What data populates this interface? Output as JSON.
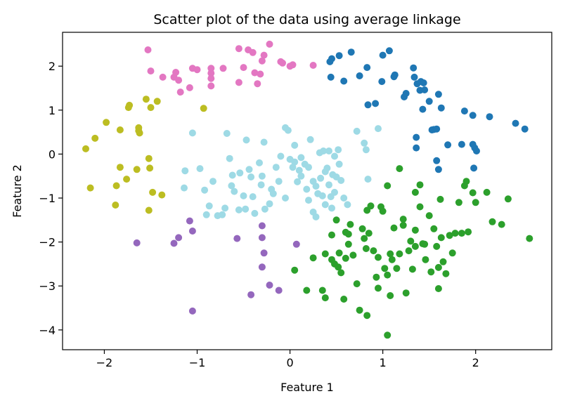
{
  "chart_data": {
    "type": "scatter",
    "title": "Scatter plot of the data using average linkage",
    "xlabel": "Feature 1",
    "ylabel": "Feature 2",
    "xlim": [
      -2.45,
      2.82
    ],
    "ylim": [
      -4.45,
      2.77
    ],
    "x_ticks": [
      -2,
      -1,
      0,
      1,
      2
    ],
    "x_tick_labels": [
      "−2",
      "−1",
      "0",
      "1",
      "2"
    ],
    "y_ticks": [
      -4,
      -3,
      -2,
      -1,
      0,
      1,
      2
    ],
    "y_tick_labels": [
      "−4",
      "−3",
      "−2",
      "−1",
      "0",
      "1",
      "2"
    ],
    "grid": false,
    "legend": "none",
    "colors": {
      "pink": "#e377c2",
      "blue": "#1f77b4",
      "olive": "#bcbd22",
      "cyan": "#9edae5",
      "purple": "#9467bd",
      "green": "#2ca02c"
    },
    "series": [
      {
        "color_key": "pink",
        "points": [
          [
            -1.53,
            2.37
          ],
          [
            -1.5,
            1.89
          ],
          [
            -1.37,
            1.75
          ],
          [
            -1.25,
            1.75
          ],
          [
            -1.23,
            1.86
          ],
          [
            -1.2,
            1.68
          ],
          [
            -1.18,
            1.41
          ],
          [
            -1.08,
            1.51
          ],
          [
            -1.05,
            1.95
          ],
          [
            -1.0,
            1.92
          ],
          [
            -0.85,
            1.95
          ],
          [
            -0.85,
            1.84
          ],
          [
            -0.85,
            1.72
          ],
          [
            -0.85,
            1.55
          ],
          [
            -0.72,
            1.95
          ],
          [
            -0.55,
            2.4
          ],
          [
            -0.55,
            1.63
          ],
          [
            -0.5,
            1.97
          ],
          [
            -0.45,
            2.37
          ],
          [
            -0.4,
            2.31
          ],
          [
            -0.38,
            1.85
          ],
          [
            -0.35,
            1.6
          ],
          [
            -0.32,
            1.82
          ],
          [
            -0.3,
            2.12
          ],
          [
            -0.28,
            2.25
          ],
          [
            -0.22,
            2.5
          ],
          [
            -0.1,
            2.1
          ],
          [
            -0.08,
            2.07
          ],
          [
            0.0,
            2.0
          ],
          [
            0.03,
            2.03
          ],
          [
            0.25,
            2.02
          ]
        ]
      },
      {
        "color_key": "blue",
        "points": [
          [
            0.43,
            2.1
          ],
          [
            0.45,
            2.17
          ],
          [
            0.44,
            1.75
          ],
          [
            0.53,
            2.24
          ],
          [
            0.58,
            1.66
          ],
          [
            0.66,
            2.32
          ],
          [
            0.75,
            1.78
          ],
          [
            0.83,
            1.97
          ],
          [
            0.84,
            1.12
          ],
          [
            0.92,
            1.15
          ],
          [
            0.99,
            1.65
          ],
          [
            1.0,
            2.25
          ],
          [
            1.07,
            2.35
          ],
          [
            1.12,
            1.76
          ],
          [
            1.13,
            1.8
          ],
          [
            1.23,
            1.3
          ],
          [
            1.25,
            1.38
          ],
          [
            1.33,
            1.96
          ],
          [
            1.34,
            1.75
          ],
          [
            1.37,
            1.6
          ],
          [
            1.4,
            1.45
          ],
          [
            1.41,
            1.65
          ],
          [
            1.44,
            1.62
          ],
          [
            1.45,
            1.46
          ],
          [
            1.43,
            1.02
          ],
          [
            1.5,
            1.2
          ],
          [
            1.53,
            0.55
          ],
          [
            1.6,
            1.36
          ],
          [
            1.63,
            1.05
          ],
          [
            1.36,
            0.38
          ],
          [
            1.36,
            0.14
          ],
          [
            1.55,
            0.56
          ],
          [
            1.58,
            0.57
          ],
          [
            1.58,
            -0.15
          ],
          [
            1.6,
            -0.35
          ],
          [
            1.7,
            0.21
          ],
          [
            1.85,
            0.22
          ],
          [
            1.88,
            0.98
          ],
          [
            1.97,
            0.88
          ],
          [
            1.97,
            0.22
          ],
          [
            1.99,
            0.14
          ],
          [
            2.01,
            0.07
          ],
          [
            1.98,
            -0.32
          ],
          [
            2.15,
            0.85
          ],
          [
            2.43,
            0.7
          ],
          [
            2.53,
            0.57
          ]
        ]
      },
      {
        "color_key": "olive",
        "points": [
          [
            -2.2,
            0.12
          ],
          [
            -2.15,
            -0.77
          ],
          [
            -2.1,
            0.36
          ],
          [
            -1.98,
            0.72
          ],
          [
            -1.88,
            -1.16
          ],
          [
            -1.87,
            -0.72
          ],
          [
            -1.83,
            -0.3
          ],
          [
            -1.83,
            0.55
          ],
          [
            -1.76,
            -0.57
          ],
          [
            -1.74,
            1.06
          ],
          [
            -1.73,
            1.11
          ],
          [
            -1.65,
            -0.35
          ],
          [
            -1.63,
            0.6
          ],
          [
            -1.63,
            0.53
          ],
          [
            -1.62,
            0.48
          ],
          [
            -1.55,
            1.25
          ],
          [
            -1.52,
            -0.1
          ],
          [
            -1.51,
            -0.32
          ],
          [
            -1.5,
            1.06
          ],
          [
            -1.48,
            -0.87
          ],
          [
            -1.52,
            -1.28
          ],
          [
            -1.43,
            1.2
          ],
          [
            -1.38,
            -0.93
          ],
          [
            -0.93,
            1.04
          ]
        ]
      },
      {
        "color_key": "cyan",
        "points": [
          [
            -1.05,
            0.48
          ],
          [
            -1.13,
            -0.38
          ],
          [
            -0.97,
            -0.33
          ],
          [
            -1.14,
            -0.77
          ],
          [
            -0.92,
            -0.82
          ],
          [
            -0.87,
            -1.18
          ],
          [
            -0.83,
            -0.62
          ],
          [
            -0.78,
            -1.4
          ],
          [
            -0.73,
            -1.38
          ],
          [
            -0.68,
            0.47
          ],
          [
            -0.7,
            -1.23
          ],
          [
            -0.65,
            -0.1
          ],
          [
            -0.62,
            -0.48
          ],
          [
            -0.63,
            -0.72
          ],
          [
            -0.6,
            -0.85
          ],
          [
            -0.55,
            -1.27
          ],
          [
            -0.54,
            -0.43
          ],
          [
            -0.5,
            -0.95
          ],
          [
            -0.48,
            -1.25
          ],
          [
            -0.47,
            0.32
          ],
          [
            -0.44,
            -0.35
          ],
          [
            -0.42,
            -0.52
          ],
          [
            -0.4,
            -0.97
          ],
          [
            -0.38,
            -1.35
          ],
          [
            -0.33,
            -0.2
          ],
          [
            -0.3,
            -0.5
          ],
          [
            -0.31,
            -0.7
          ],
          [
            -0.28,
            0.27
          ],
          [
            -0.27,
            -1.25
          ],
          [
            -0.22,
            -1.13
          ],
          [
            -0.2,
            -0.8
          ],
          [
            -0.18,
            -0.9
          ],
          [
            -0.15,
            -0.3
          ],
          [
            -0.12,
            -0.62
          ],
          [
            -0.1,
            -0.05
          ],
          [
            -0.05,
            0.6
          ],
          [
            -0.02,
            0.54
          ],
          [
            -0.05,
            -1.0
          ],
          [
            0.0,
            -0.12
          ],
          [
            0.03,
            -0.3
          ],
          [
            0.05,
            -0.18
          ],
          [
            0.05,
            0.2
          ],
          [
            0.08,
            -0.63
          ],
          [
            0.1,
            -0.37
          ],
          [
            0.12,
            -0.08
          ],
          [
            0.16,
            -0.23
          ],
          [
            0.2,
            -0.3
          ],
          [
            0.2,
            -1.05
          ],
          [
            0.22,
            0.33
          ],
          [
            0.25,
            -0.62
          ],
          [
            0.25,
            -1.32
          ],
          [
            0.28,
            -1.43
          ],
          [
            0.3,
            -0.9
          ],
          [
            0.32,
            0.03
          ],
          [
            0.33,
            -0.55
          ],
          [
            0.35,
            -0.95
          ],
          [
            0.36,
            0.07
          ],
          [
            0.38,
            -1.15
          ],
          [
            0.4,
            -0.32
          ],
          [
            0.42,
            0.07
          ],
          [
            0.42,
            -0.7
          ],
          [
            0.44,
            -0.97
          ],
          [
            0.46,
            -0.47
          ],
          [
            0.48,
            -0.05
          ],
          [
            0.48,
            -0.87
          ],
          [
            0.5,
            -0.52
          ],
          [
            0.52,
            0.1
          ],
          [
            0.53,
            -0.23
          ],
          [
            0.55,
            -0.6
          ],
          [
            0.58,
            -1.0
          ],
          [
            0.62,
            -1.15
          ],
          [
            0.72,
            0.52
          ],
          [
            0.8,
            0.25
          ],
          [
            0.82,
            0.1
          ],
          [
            0.84,
            -0.57
          ],
          [
            0.95,
            0.58
          ],
          [
            0.38,
            -0.4
          ],
          [
            0.28,
            -0.73
          ],
          [
            0.18,
            -0.8
          ],
          [
            0.12,
            -0.5
          ],
          [
            -0.9,
            -1.38
          ],
          [
            0.45,
            -1.23
          ]
        ]
      },
      {
        "color_key": "purple",
        "points": [
          [
            -1.65,
            -2.02
          ],
          [
            -1.25,
            -2.03
          ],
          [
            -1.2,
            -1.9
          ],
          [
            -1.08,
            -1.52
          ],
          [
            -1.05,
            -1.75
          ],
          [
            -1.05,
            -3.57
          ],
          [
            -0.57,
            -1.92
          ],
          [
            -0.42,
            -3.2
          ],
          [
            -0.3,
            -1.63
          ],
          [
            -0.3,
            -1.9
          ],
          [
            -0.3,
            -2.57
          ],
          [
            -0.28,
            -2.25
          ],
          [
            -0.22,
            -2.98
          ],
          [
            -0.12,
            -3.1
          ],
          [
            0.07,
            -2.05
          ]
        ]
      },
      {
        "color_key": "green",
        "points": [
          [
            0.05,
            -2.64
          ],
          [
            0.18,
            -3.1
          ],
          [
            0.25,
            -2.36
          ],
          [
            0.35,
            -3.1
          ],
          [
            0.38,
            -2.27
          ],
          [
            0.38,
            -3.27
          ],
          [
            0.45,
            -1.84
          ],
          [
            0.45,
            -2.4
          ],
          [
            0.48,
            -2.5
          ],
          [
            0.52,
            -2.57
          ],
          [
            0.53,
            -2.25
          ],
          [
            0.55,
            -2.7
          ],
          [
            0.58,
            -3.3
          ],
          [
            0.6,
            -1.78
          ],
          [
            0.6,
            -2.37
          ],
          [
            0.63,
            -2.05
          ],
          [
            0.63,
            -1.82
          ],
          [
            0.68,
            -2.3
          ],
          [
            0.72,
            -2.95
          ],
          [
            0.75,
            -3.55
          ],
          [
            0.78,
            -1.7
          ],
          [
            0.8,
            -1.92
          ],
          [
            0.82,
            -2.15
          ],
          [
            0.83,
            -3.67
          ],
          [
            0.83,
            -1.28
          ],
          [
            0.85,
            -1.8
          ],
          [
            0.9,
            -2.2
          ],
          [
            0.93,
            -2.8
          ],
          [
            0.95,
            -3.05
          ],
          [
            0.98,
            -1.2
          ],
          [
            1.0,
            -1.3
          ],
          [
            1.02,
            -2.6
          ],
          [
            1.05,
            -2.75
          ],
          [
            1.08,
            -3.22
          ],
          [
            1.05,
            -4.12
          ],
          [
            1.08,
            -2.27
          ],
          [
            1.1,
            -2.4
          ],
          [
            1.12,
            -1.68
          ],
          [
            1.15,
            -2.6
          ],
          [
            1.18,
            -0.33
          ],
          [
            1.18,
            -2.27
          ],
          [
            1.22,
            -1.48
          ],
          [
            1.22,
            -1.62
          ],
          [
            1.25,
            -3.16
          ],
          [
            1.28,
            -2.2
          ],
          [
            1.32,
            -2.62
          ],
          [
            1.35,
            -0.87
          ],
          [
            1.35,
            -1.73
          ],
          [
            1.35,
            -2.1
          ],
          [
            1.4,
            -0.7
          ],
          [
            1.4,
            -1.2
          ],
          [
            1.43,
            -2.04
          ],
          [
            1.45,
            -2.05
          ],
          [
            1.46,
            -2.4
          ],
          [
            1.5,
            -1.4
          ],
          [
            1.52,
            -2.68
          ],
          [
            1.55,
            -1.7
          ],
          [
            1.58,
            -2.1
          ],
          [
            1.6,
            -2.58
          ],
          [
            1.6,
            -3.06
          ],
          [
            1.62,
            -1.03
          ],
          [
            1.63,
            -1.9
          ],
          [
            1.65,
            -2.45
          ],
          [
            1.68,
            -2.72
          ],
          [
            1.72,
            -1.85
          ],
          [
            1.75,
            -2.25
          ],
          [
            1.78,
            -1.8
          ],
          [
            1.82,
            -1.1
          ],
          [
            1.85,
            -1.8
          ],
          [
            1.88,
            -0.72
          ],
          [
            1.9,
            -0.62
          ],
          [
            1.92,
            -1.77
          ],
          [
            1.97,
            -0.88
          ],
          [
            2.0,
            -1.1
          ],
          [
            2.12,
            -0.87
          ],
          [
            2.18,
            -1.54
          ],
          [
            2.28,
            -1.6
          ],
          [
            2.35,
            -1.02
          ],
          [
            2.58,
            -1.92
          ],
          [
            0.87,
            -1.18
          ],
          [
            1.05,
            -0.72
          ],
          [
            0.5,
            -1.5
          ],
          [
            0.65,
            -1.6
          ],
          [
            0.95,
            -2.35
          ],
          [
            1.3,
            -1.98
          ]
        ]
      }
    ]
  }
}
